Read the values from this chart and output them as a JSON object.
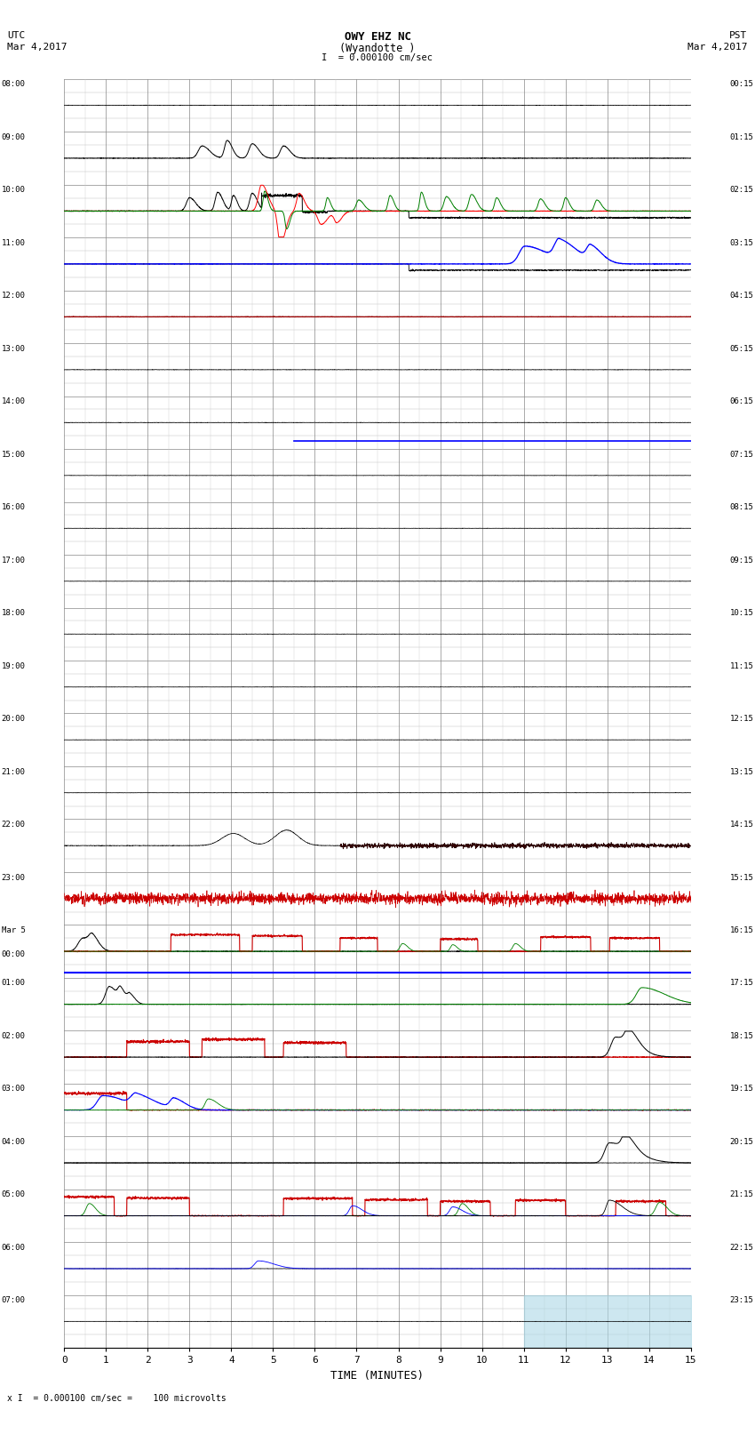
{
  "title_line1": "OWY EHZ NC",
  "title_line2": "(Wyandotte )",
  "scale_label": "I  = 0.000100 cm/sec",
  "footer_label": "x I  = 0.000100 cm/sec =    100 microvolts",
  "utc_label": "UTC",
  "utc_date": "Mar 4,2017",
  "pst_label": "PST",
  "pst_date": "Mar 4,2017",
  "xlabel": "TIME (MINUTES)",
  "left_times": [
    "08:00",
    "09:00",
    "10:00",
    "11:00",
    "12:00",
    "13:00",
    "14:00",
    "15:00",
    "16:00",
    "17:00",
    "18:00",
    "19:00",
    "20:00",
    "21:00",
    "22:00",
    "23:00",
    "Mar 5\n00:00",
    "01:00",
    "02:00",
    "03:00",
    "04:00",
    "05:00",
    "06:00",
    "07:00"
  ],
  "right_times": [
    "00:15",
    "01:15",
    "02:15",
    "03:15",
    "04:15",
    "05:15",
    "06:15",
    "07:15",
    "08:15",
    "09:15",
    "10:15",
    "11:15",
    "12:15",
    "13:15",
    "14:15",
    "15:15",
    "16:15",
    "17:15",
    "18:15",
    "19:15",
    "20:15",
    "21:15",
    "22:15",
    "23:15"
  ],
  "num_rows": 24,
  "xmin": 0,
  "xmax": 15,
  "background_color": "#ffffff",
  "minor_grid_color": "#dddddd",
  "major_grid_color": "#aaaaaa"
}
